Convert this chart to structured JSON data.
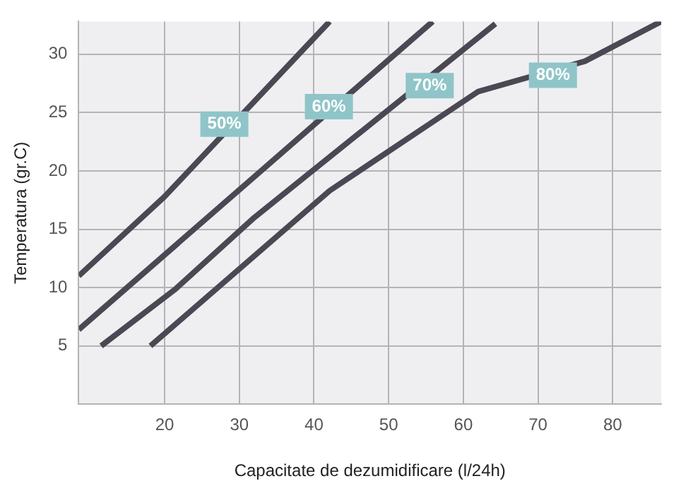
{
  "chart_data": {
    "type": "line",
    "xlabel": "Capacitate de dezumidificare (l/24h)",
    "ylabel": "Temperatura (gr.C)",
    "series": [
      {
        "color": "#4a4953",
        "x": [
          8.5,
          20,
          42.1
        ],
        "values": [
          11.0,
          17.8,
          32.8
        ]
      },
      {
        "color": "#4a4953",
        "x": [
          8.5,
          55.9
        ],
        "values": [
          6.4,
          32.8
        ]
      },
      {
        "color": "#4a4953",
        "x": [
          11.5,
          21.5,
          32,
          64.3
        ],
        "values": [
          5,
          9.9,
          16.0,
          32.6
        ]
      },
      {
        "color": "#4a4953",
        "x": [
          18.1,
          42.1,
          62,
          76.3,
          86.5
        ],
        "values": [
          5,
          18.3,
          26.8,
          29.4,
          32.8
        ]
      }
    ],
    "annotations": [
      {
        "text": "50%",
        "x": 28,
        "y": 24
      },
      {
        "text": "60%",
        "x": 42,
        "y": 25.5
      },
      {
        "text": "70%",
        "x": 55.5,
        "y": 27.3
      },
      {
        "text": "80%",
        "x": 72,
        "y": 28.2
      }
    ],
    "xlim": [
      8.5,
      86.5
    ],
    "xticks": [
      20,
      30,
      40,
      50,
      60,
      70,
      80
    ],
    "ylim": [
      0,
      32.8
    ],
    "yticks": [
      5,
      10,
      15,
      20,
      25,
      30
    ],
    "grid": true,
    "legend": false,
    "marker": "none",
    "line_style": "solid"
  }
}
